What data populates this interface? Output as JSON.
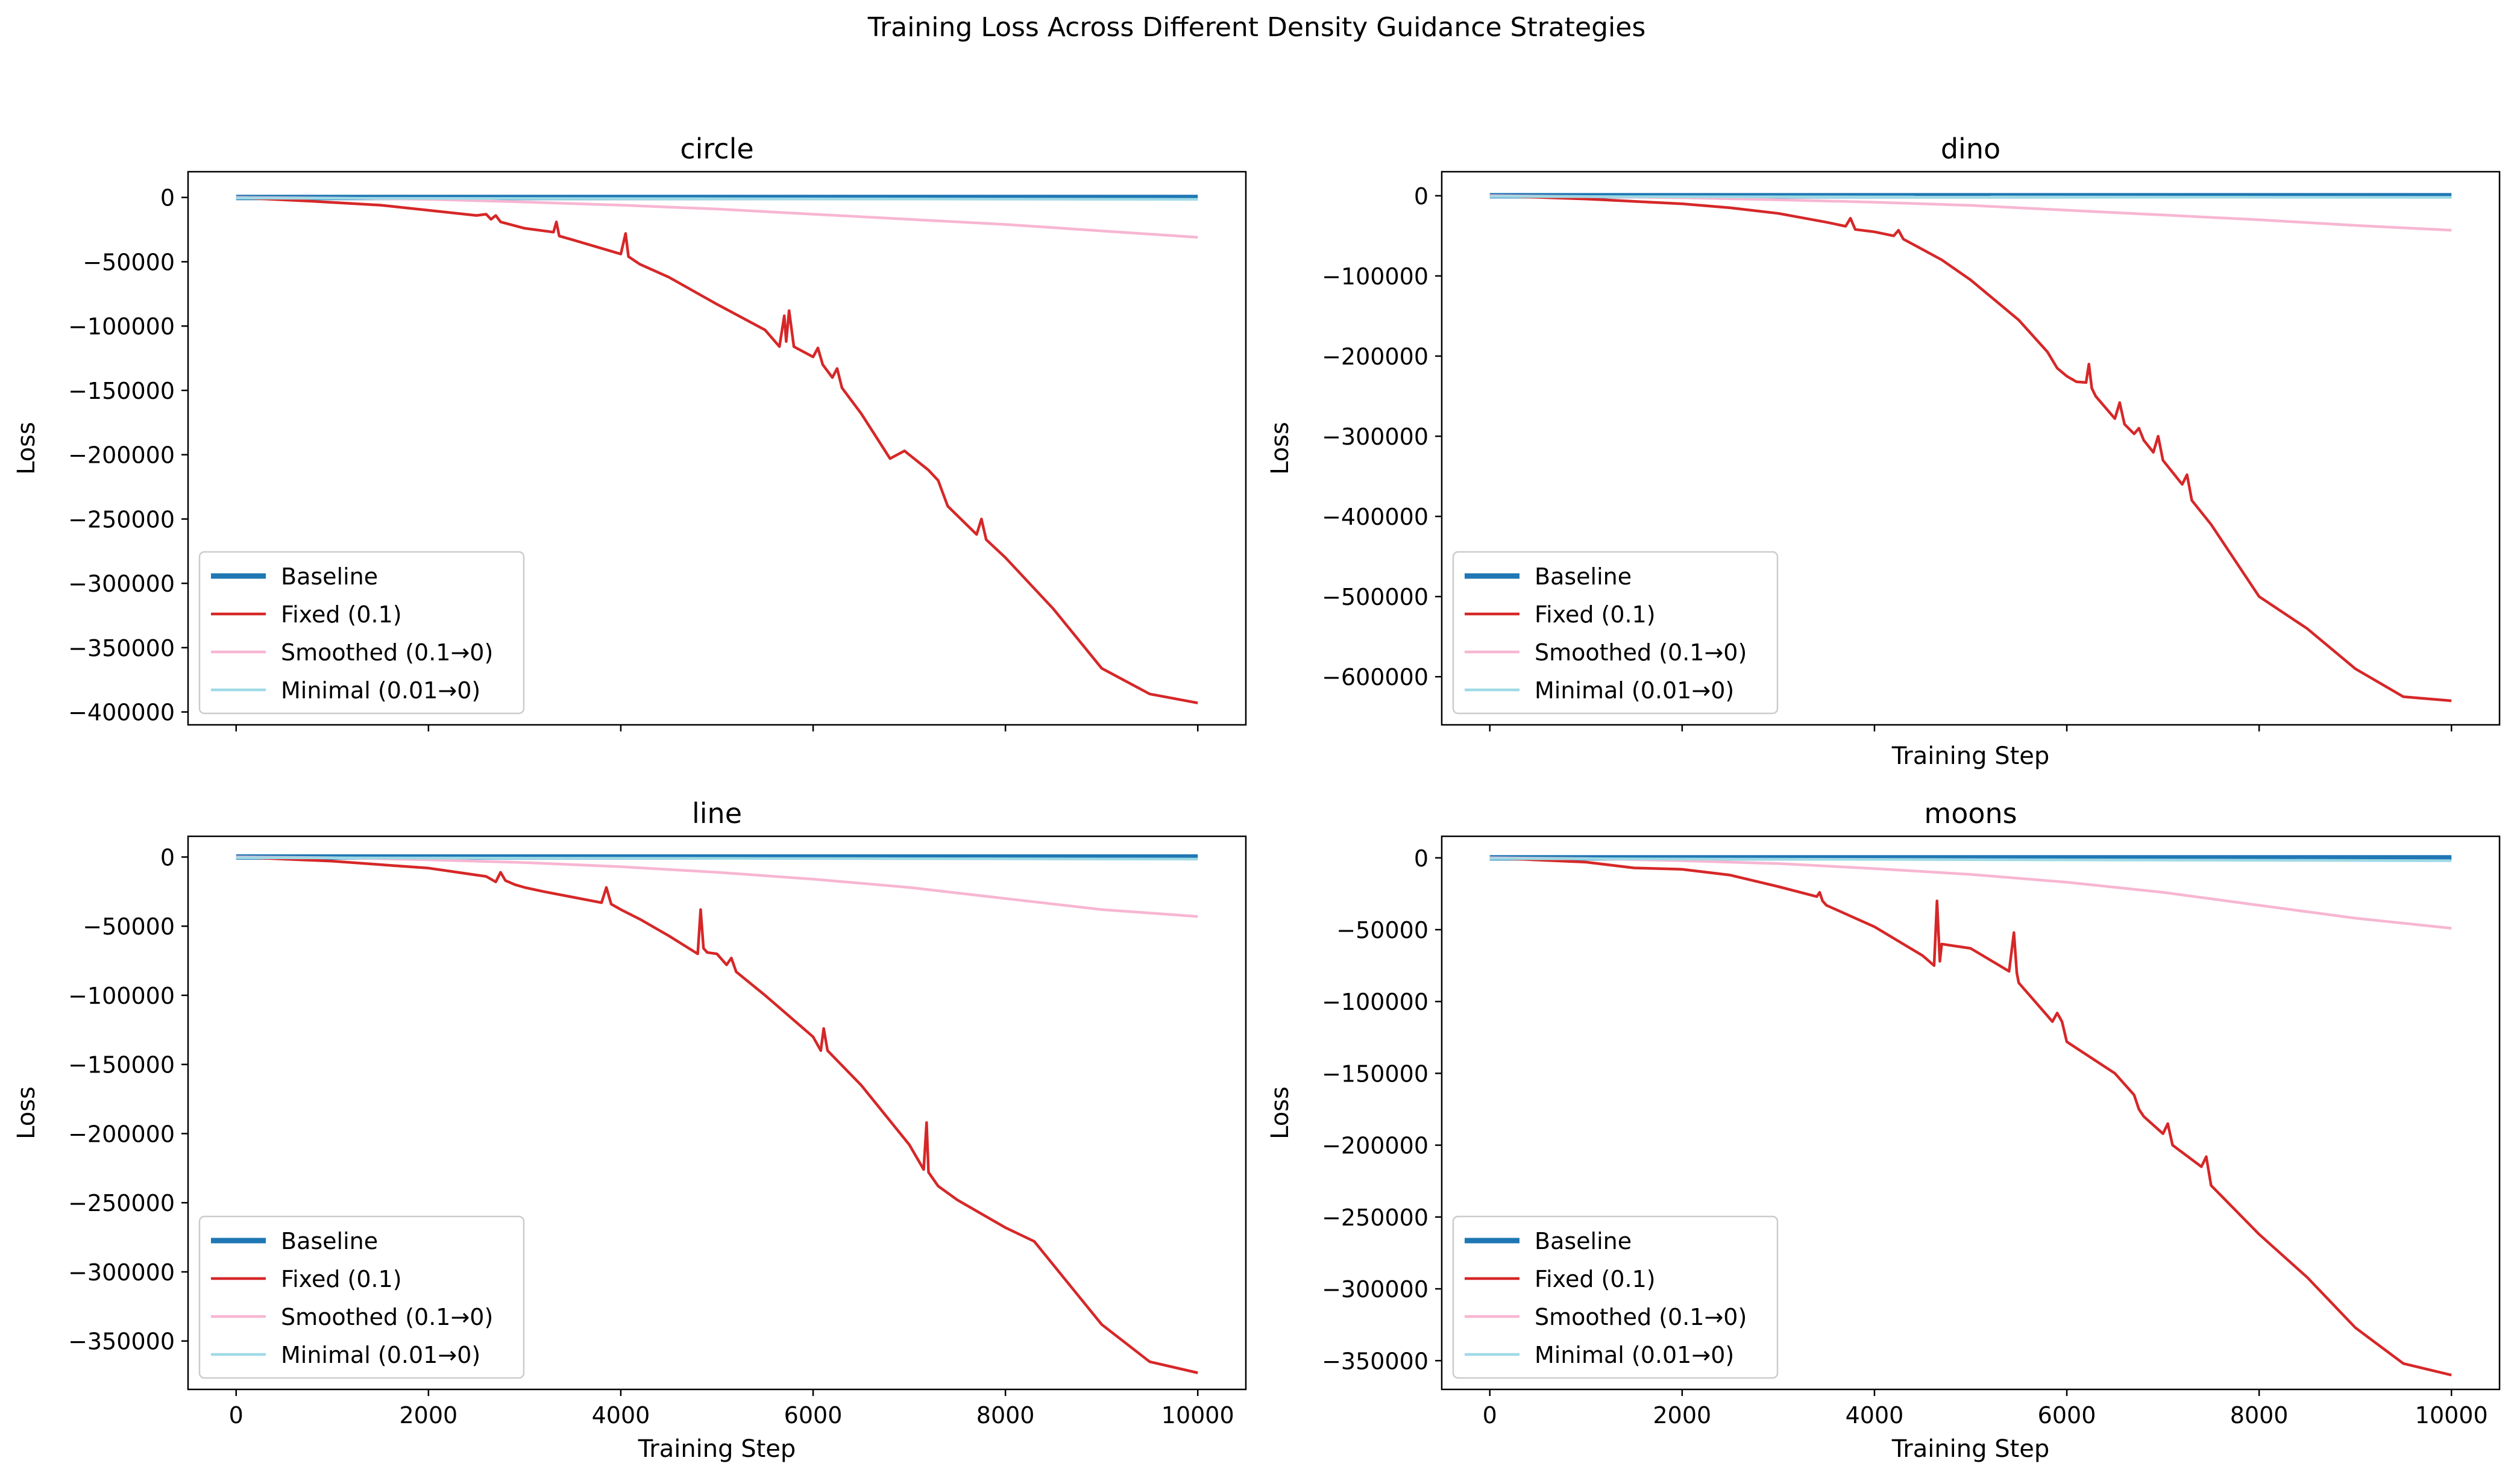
{
  "suptitle": "Training Loss Across Different Density Guidance Strategies",
  "legend_labels": [
    "Baseline",
    "Fixed (0.1)",
    "Smoothed (0.1→0)",
    "Minimal (0.01→0)"
  ],
  "series_colors": {
    "Baseline": "#1f77b4",
    "Fixed (0.1)": "#d62728",
    "Smoothed (0.1→0)": "#f7b6d2",
    "Minimal (0.01→0)": "#9edae5"
  },
  "chart_data": [
    {
      "type": "line",
      "title": "circle",
      "xlabel": "",
      "ylabel": "Loss",
      "xlim": [
        -500,
        10500
      ],
      "ylim": [
        -410000,
        20000
      ],
      "xticks": [
        0,
        2000,
        4000,
        6000,
        8000,
        10000
      ],
      "xtick_labels_shown": false,
      "yticks": [
        0,
        -50000,
        -100000,
        -150000,
        -200000,
        -250000,
        -300000,
        -350000,
        -400000
      ],
      "ytick_labels": [
        "0",
        "−50000",
        "−100000",
        "−150000",
        "−200000",
        "−250000",
        "−300000",
        "−350000",
        "−400000"
      ],
      "legend_position": "lower left",
      "series": [
        {
          "name": "Baseline",
          "x": [
            0,
            10000
          ],
          "y": [
            0,
            0
          ]
        },
        {
          "name": "Fixed (0.1)",
          "x": [
            0,
            800,
            1500,
            2000,
            2500,
            2600,
            2650,
            2700,
            2750,
            2800,
            3000,
            3300,
            3330,
            3360,
            3500,
            4000,
            4050,
            4080,
            4200,
            4500,
            5000,
            5500,
            5650,
            5700,
            5720,
            5750,
            5800,
            6000,
            6050,
            6100,
            6200,
            6250,
            6300,
            6500,
            6800,
            6950,
            7000,
            7200,
            7300,
            7400,
            7700,
            7750,
            7800,
            8000,
            8500,
            9000,
            9500,
            10000
          ],
          "y": [
            0,
            -3000,
            -6000,
            -10000,
            -14000,
            -13000,
            -17000,
            -14000,
            -19000,
            -20000,
            -24000,
            -27000,
            -19000,
            -30000,
            -33000,
            -44000,
            -28000,
            -46000,
            -52000,
            -62000,
            -83000,
            -103000,
            -116000,
            -92000,
            -112000,
            -88000,
            -116000,
            -124000,
            -117000,
            -130000,
            -140000,
            -133000,
            -148000,
            -168000,
            -203000,
            -197000,
            -200000,
            -212000,
            -220000,
            -240000,
            -262000,
            -250000,
            -266000,
            -280000,
            -320000,
            -366000,
            -386000,
            -393000
          ]
        },
        {
          "name": "Smoothed (0.1→0)",
          "x": [
            0,
            1000,
            2000,
            3000,
            4000,
            5000,
            6000,
            7000,
            8000,
            9000,
            10000
          ],
          "y": [
            0,
            -500,
            -1500,
            -3500,
            -6000,
            -9000,
            -13000,
            -17000,
            -21000,
            -26000,
            -31000
          ]
        },
        {
          "name": "Minimal (0.01→0)",
          "x": [
            0,
            10000
          ],
          "y": [
            -500,
            -1500
          ]
        }
      ]
    },
    {
      "type": "line",
      "title": "dino",
      "xlabel": "Training Step",
      "ylabel": "Loss",
      "xlim": [
        -500,
        10500
      ],
      "ylim": [
        -660000,
        30000
      ],
      "xticks": [
        0,
        2000,
        4000,
        6000,
        8000,
        10000
      ],
      "xtick_labels_shown": false,
      "yticks": [
        0,
        -100000,
        -200000,
        -300000,
        -400000,
        -500000,
        -600000
      ],
      "ytick_labels": [
        "0",
        "−100000",
        "−200000",
        "−300000",
        "−400000",
        "−500000",
        "−600000"
      ],
      "legend_position": "lower left",
      "series": [
        {
          "name": "Baseline",
          "x": [
            0,
            10000
          ],
          "y": [
            0,
            0
          ]
        },
        {
          "name": "Fixed (0.1)",
          "x": [
            0,
            1000,
            2000,
            2500,
            3000,
            3500,
            3700,
            3750,
            3800,
            4000,
            4200,
            4250,
            4300,
            4700,
            5000,
            5500,
            5800,
            5900,
            6000,
            6100,
            6200,
            6230,
            6260,
            6300,
            6500,
            6550,
            6600,
            6700,
            6750,
            6800,
            6900,
            6950,
            7000,
            7200,
            7250,
            7300,
            7500,
            8000,
            8500,
            9000,
            9500,
            10000
          ],
          "y": [
            0,
            -4000,
            -10000,
            -15000,
            -22000,
            -33000,
            -38000,
            -28000,
            -42000,
            -45000,
            -50000,
            -43000,
            -54000,
            -80000,
            -105000,
            -155000,
            -195000,
            -215000,
            -225000,
            -232000,
            -233000,
            -210000,
            -240000,
            -250000,
            -278000,
            -258000,
            -285000,
            -297000,
            -290000,
            -305000,
            -320000,
            -300000,
            -330000,
            -360000,
            -348000,
            -380000,
            -410000,
            -500000,
            -540000,
            -590000,
            -625000,
            -630000
          ]
        },
        {
          "name": "Smoothed (0.1→0)",
          "x": [
            0,
            1000,
            2000,
            3000,
            4000,
            5000,
            6000,
            7000,
            8000,
            9000,
            10000
          ],
          "y": [
            0,
            -1000,
            -2500,
            -5000,
            -8000,
            -12000,
            -18000,
            -24000,
            -30000,
            -37000,
            -43000
          ]
        },
        {
          "name": "Minimal (0.01→0)",
          "x": [
            0,
            10000
          ],
          "y": [
            -1000,
            -2000
          ]
        }
      ]
    },
    {
      "type": "line",
      "title": "line",
      "xlabel": "Training Step",
      "ylabel": "Loss",
      "xlim": [
        -500,
        10500
      ],
      "ylim": [
        -385000,
        15000
      ],
      "xticks": [
        0,
        2000,
        4000,
        6000,
        8000,
        10000
      ],
      "xtick_labels_shown": true,
      "xtick_labels": [
        "0",
        "2000",
        "4000",
        "6000",
        "8000",
        "10000"
      ],
      "yticks": [
        0,
        -50000,
        -100000,
        -150000,
        -200000,
        -250000,
        -300000,
        -350000
      ],
      "ytick_labels": [
        "0",
        "−50000",
        "−100000",
        "−150000",
        "−200000",
        "−250000",
        "−300000",
        "−350000"
      ],
      "legend_position": "lower left",
      "series": [
        {
          "name": "Baseline",
          "x": [
            0,
            10000
          ],
          "y": [
            0,
            0
          ]
        },
        {
          "name": "Fixed (0.1)",
          "x": [
            0,
            1000,
            2000,
            2600,
            2700,
            2750,
            2800,
            2900,
            3000,
            3200,
            3500,
            3800,
            3850,
            3900,
            4000,
            4200,
            4500,
            4800,
            4830,
            4860,
            4900,
            5000,
            5100,
            5150,
            5200,
            5500,
            6000,
            6080,
            6110,
            6150,
            6500,
            7000,
            7150,
            7180,
            7200,
            7300,
            7500,
            8000,
            8300,
            9000,
            9500,
            10000
          ],
          "y": [
            0,
            -3000,
            -8000,
            -14000,
            -18000,
            -11000,
            -17000,
            -20000,
            -22000,
            -25000,
            -29000,
            -33000,
            -22000,
            -34000,
            -38000,
            -45000,
            -57000,
            -70000,
            -38000,
            -66000,
            -69000,
            -70000,
            -78000,
            -73000,
            -83000,
            -100000,
            -130000,
            -140000,
            -124000,
            -140000,
            -165000,
            -208000,
            -226000,
            -192000,
            -228000,
            -238000,
            -248000,
            -268000,
            -278000,
            -338000,
            -365000,
            -373000
          ]
        },
        {
          "name": "Smoothed (0.1→0)",
          "x": [
            0,
            1000,
            2000,
            3000,
            4000,
            5000,
            6000,
            7000,
            8000,
            9000,
            10000
          ],
          "y": [
            0,
            -500,
            -2000,
            -4000,
            -7000,
            -11000,
            -16000,
            -22000,
            -30000,
            -38000,
            -43000
          ]
        },
        {
          "name": "Minimal (0.01→0)",
          "x": [
            0,
            10000
          ],
          "y": [
            -500,
            -1500
          ]
        }
      ]
    },
    {
      "type": "line",
      "title": "moons",
      "xlabel": "Training Step",
      "ylabel": "Loss",
      "xlim": [
        -500,
        10500
      ],
      "ylim": [
        -370000,
        15000
      ],
      "xticks": [
        0,
        2000,
        4000,
        6000,
        8000,
        10000
      ],
      "xtick_labels_shown": true,
      "xtick_labels": [
        "0",
        "2000",
        "4000",
        "6000",
        "8000",
        "10000"
      ],
      "yticks": [
        0,
        -50000,
        -100000,
        -150000,
        -200000,
        -250000,
        -300000,
        -350000
      ],
      "ytick_labels": [
        "0",
        "−50000",
        "−100000",
        "−150000",
        "−200000",
        "−250000",
        "−300000",
        "−350000"
      ],
      "legend_position": "lower left",
      "series": [
        {
          "name": "Baseline",
          "x": [
            0,
            10000
          ],
          "y": [
            0,
            0
          ]
        },
        {
          "name": "Fixed (0.1)",
          "x": [
            0,
            1000,
            1500,
            2000,
            2500,
            3000,
            3400,
            3430,
            3460,
            3500,
            4000,
            4500,
            4620,
            4650,
            4680,
            4700,
            5000,
            5400,
            5450,
            5480,
            5500,
            5800,
            5850,
            5900,
            5950,
            6000,
            6500,
            6700,
            6750,
            6800,
            7000,
            7050,
            7100,
            7400,
            7450,
            7500,
            8000,
            8500,
            9000,
            9500,
            10000
          ],
          "y": [
            0,
            -3000,
            -7000,
            -8000,
            -12000,
            -20000,
            -27000,
            -24000,
            -30000,
            -33000,
            -48000,
            -68000,
            -75000,
            -30000,
            -72000,
            -60000,
            -63000,
            -79000,
            -52000,
            -80000,
            -87000,
            -110000,
            -114000,
            -108000,
            -114000,
            -128000,
            -150000,
            -165000,
            -175000,
            -180000,
            -192000,
            -185000,
            -200000,
            -215000,
            -208000,
            -228000,
            -262000,
            -292000,
            -327000,
            -352000,
            -360000
          ]
        },
        {
          "name": "Smoothed (0.1→0)",
          "x": [
            0,
            1000,
            2000,
            3000,
            4000,
            5000,
            6000,
            7000,
            8000,
            9000,
            10000
          ],
          "y": [
            0,
            -500,
            -2000,
            -4000,
            -7500,
            -11500,
            -17000,
            -24000,
            -33000,
            -42000,
            -49000
          ]
        },
        {
          "name": "Minimal (0.01→0)",
          "x": [
            0,
            10000
          ],
          "y": [
            -500,
            -2000
          ]
        }
      ]
    }
  ]
}
